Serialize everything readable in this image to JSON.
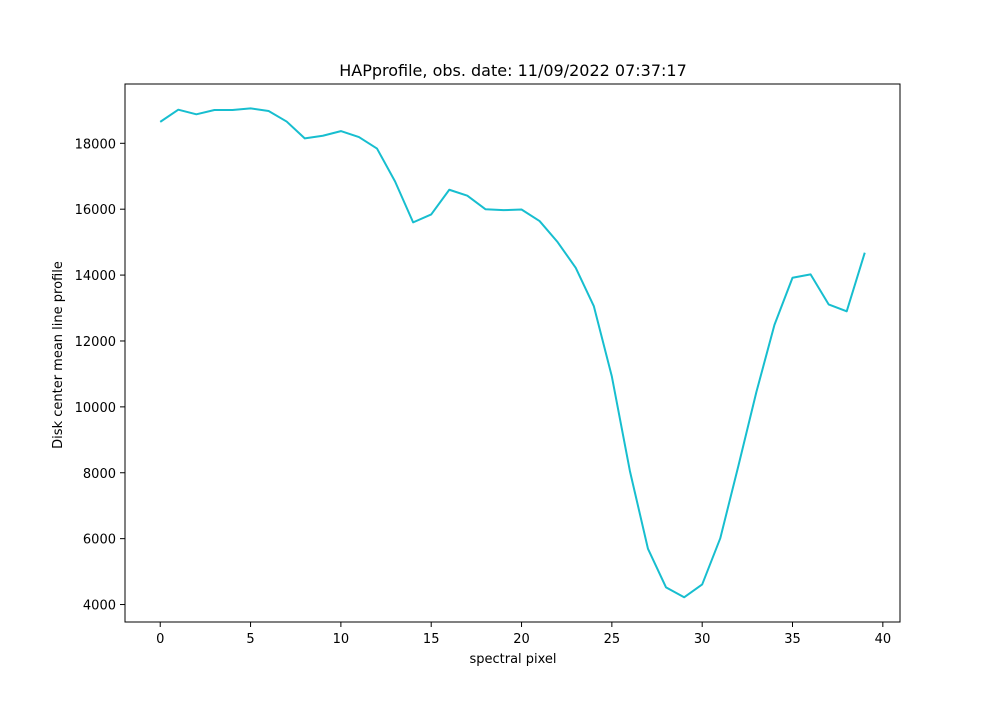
{
  "chart_data": {
    "type": "line",
    "title": "HAPprofile, obs. date: 11/09/2022 07:37:17",
    "xlabel": "spectral pixel",
    "ylabel": "Disk center mean line profile",
    "xlim": [
      -1.95,
      40.95
    ],
    "ylim": [
      3470,
      19800
    ],
    "xticks": [
      0,
      5,
      10,
      15,
      20,
      25,
      30,
      35,
      40
    ],
    "yticks": [
      4000,
      6000,
      8000,
      10000,
      12000,
      14000,
      16000,
      18000
    ],
    "grid": false,
    "legend": "none",
    "series": [
      {
        "color": "#17becf",
        "x": [
          0,
          1,
          2,
          3,
          4,
          5,
          6,
          7,
          8,
          9,
          10,
          11,
          12,
          13,
          14,
          15,
          16,
          17,
          18,
          19,
          20,
          21,
          22,
          23,
          24,
          25,
          26,
          27,
          28,
          29,
          30,
          31,
          32,
          33,
          34,
          35,
          36,
          37,
          38,
          39
        ],
        "y": [
          18650,
          19020,
          18880,
          19010,
          19010,
          19060,
          18980,
          18660,
          18150,
          18230,
          18370,
          18190,
          17840,
          16840,
          15600,
          15840,
          16590,
          16410,
          16000,
          15970,
          15990,
          15640,
          15000,
          14220,
          13060,
          10920,
          8050,
          5690,
          4520,
          4220,
          4610,
          6010,
          8200,
          10450,
          12490,
          13920,
          14020,
          13110,
          12900,
          14680
        ]
      }
    ]
  }
}
